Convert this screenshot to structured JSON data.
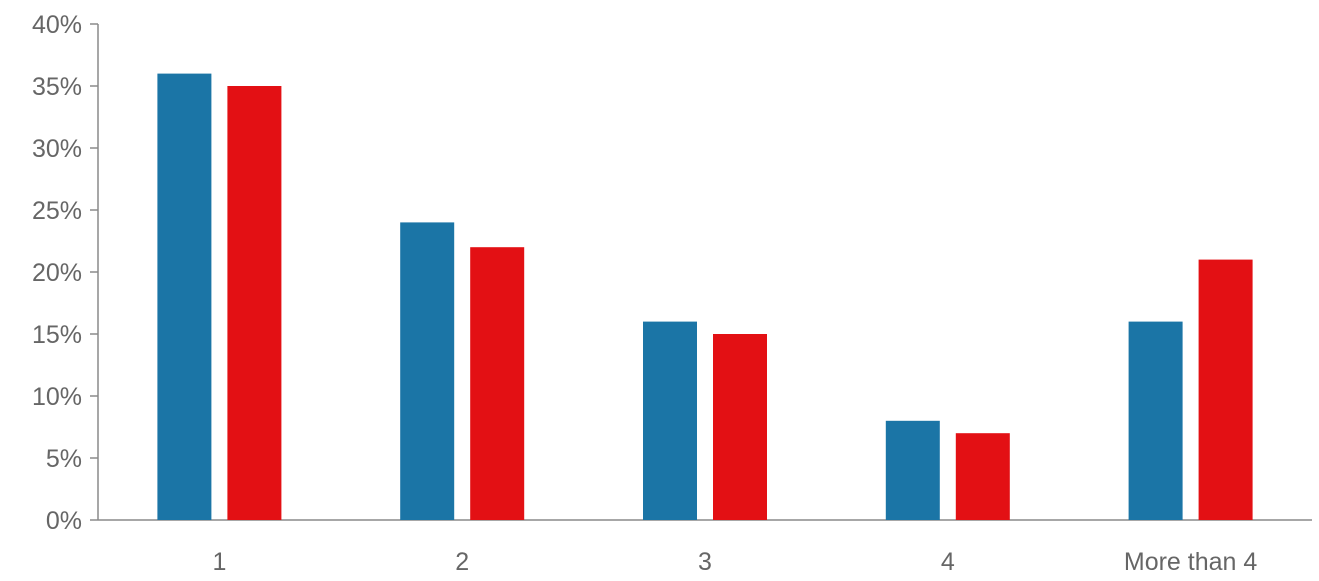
{
  "chart_data": {
    "type": "bar",
    "categories": [
      "1",
      "2",
      "3",
      "4",
      "More than 4"
    ],
    "series": [
      {
        "values": [
          36,
          24,
          16,
          8,
          16
        ],
        "color": "#1b75a6"
      },
      {
        "values": [
          35,
          22,
          15,
          7,
          21
        ],
        "color": "#e31014"
      }
    ],
    "ylim": [
      0,
      40
    ],
    "y_ticks": [
      0,
      5,
      10,
      15,
      20,
      25,
      30,
      35,
      40
    ],
    "y_tick_format": "percent",
    "grid": false,
    "legend": "none"
  }
}
